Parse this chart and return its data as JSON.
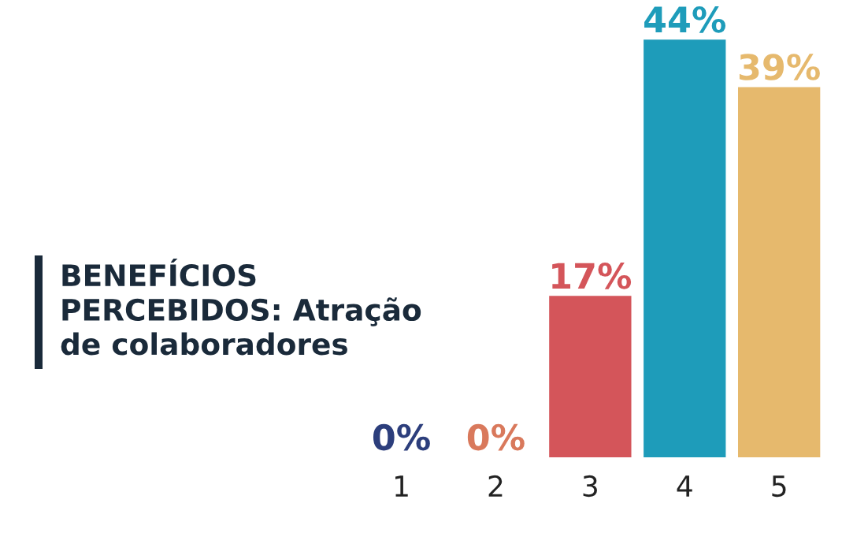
{
  "chart_data": {
    "type": "bar",
    "title": "BENEFÍCIOS\nPERCEBIDOS: Atração\nde colaboradores",
    "categories": [
      "1",
      "2",
      "3",
      "4",
      "5"
    ],
    "values": [
      0,
      0,
      17,
      44,
      39
    ],
    "colors": [
      "#2c3e7c",
      "#d9795c",
      "#d4555a",
      "#1e9cba",
      "#e6b96d"
    ],
    "value_labels": [
      "0%",
      "0%",
      "17%",
      "44%",
      "39%"
    ],
    "grid": false,
    "legend": false
  }
}
